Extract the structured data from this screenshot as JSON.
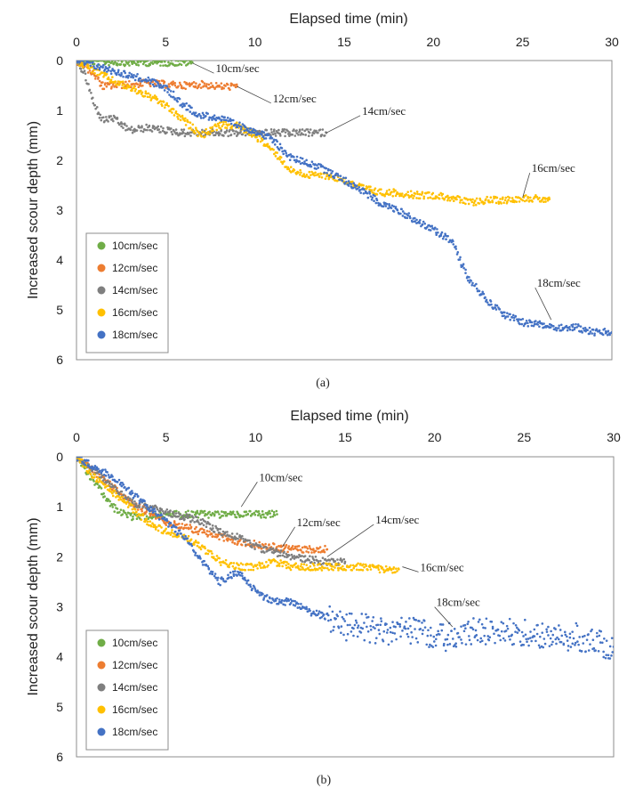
{
  "chart_data": [
    {
      "type": "scatter",
      "panel_label": "(a)",
      "xlabel": "Elapsed time (min)",
      "ylabel": "Increased scour depth (mm)",
      "xlim": [
        0,
        30
      ],
      "ylim": [
        0,
        6
      ],
      "y_inverted": true,
      "x_axis_position": "top",
      "xticks": [
        "0",
        "5",
        "10",
        "15",
        "20",
        "25",
        "30"
      ],
      "yticks": [
        "0",
        "1",
        "2",
        "3",
        "4",
        "5",
        "6"
      ],
      "legend": {
        "position": "bottom-left"
      },
      "series": [
        {
          "name": "10cm/sec",
          "color": "#70ad47",
          "annotation": "10cm/sec",
          "annot_point": [
            6.5,
            0.05
          ],
          "annot_text_at": [
            7.8,
            0.2
          ],
          "x": [
            0,
            1,
            2,
            3,
            4,
            5,
            6,
            6.5
          ],
          "y": [
            0.0,
            0.02,
            0.03,
            0.04,
            0.04,
            0.04,
            0.04,
            0.04
          ]
        },
        {
          "name": "12cm/sec",
          "color": "#ed7d31",
          "annotation": "12cm/sec",
          "annot_point": [
            9.0,
            0.52
          ],
          "annot_text_at": [
            11.0,
            0.8
          ],
          "x": [
            0,
            0.5,
            1,
            1.5,
            2,
            3,
            4,
            5,
            6,
            7,
            8,
            9
          ],
          "y": [
            0.0,
            0.1,
            0.3,
            0.52,
            0.5,
            0.48,
            0.45,
            0.48,
            0.5,
            0.48,
            0.52,
            0.52
          ]
        },
        {
          "name": "14cm/sec",
          "color": "#7f7f7f",
          "annotation": "14cm/sec",
          "annot_point": [
            14.0,
            1.45
          ],
          "annot_text_at": [
            16.0,
            1.05
          ],
          "x": [
            0,
            0.5,
            1,
            1.5,
            2,
            3,
            4,
            5,
            6,
            7,
            8,
            9,
            10,
            11,
            12,
            13,
            14
          ],
          "y": [
            0.0,
            0.3,
            0.9,
            1.2,
            1.15,
            1.4,
            1.35,
            1.4,
            1.45,
            1.45,
            1.45,
            1.45,
            1.45,
            1.45,
            1.45,
            1.45,
            1.45
          ]
        },
        {
          "name": "16cm/sec",
          "color": "#ffc000",
          "annotation": "16cm/sec",
          "annot_point": [
            25.0,
            2.75
          ],
          "annot_text_at": [
            25.5,
            2.2
          ],
          "x": [
            0,
            1,
            2,
            3,
            4,
            5,
            6,
            7,
            8,
            9,
            10,
            11,
            12,
            13,
            14,
            15,
            16,
            17,
            18,
            19,
            20,
            21,
            22,
            23,
            24,
            25,
            26,
            26.5
          ],
          "y": [
            0.0,
            0.2,
            0.4,
            0.55,
            0.7,
            0.9,
            1.2,
            1.5,
            1.3,
            1.3,
            1.5,
            1.8,
            2.2,
            2.3,
            2.3,
            2.4,
            2.55,
            2.65,
            2.65,
            2.7,
            2.7,
            2.75,
            2.85,
            2.8,
            2.8,
            2.75,
            2.78,
            2.78
          ]
        },
        {
          "name": "18cm/sec",
          "color": "#4472c4",
          "annotation": "18cm/sec",
          "annot_point": [
            26.6,
            5.2
          ],
          "annot_text_at": [
            25.8,
            4.5
          ],
          "x": [
            0,
            1,
            2,
            3,
            4,
            5,
            6,
            7,
            8,
            9,
            10,
            11,
            12,
            13,
            14,
            15,
            16,
            17,
            18,
            19,
            20,
            21,
            22,
            23,
            24,
            25,
            26,
            27,
            28,
            29,
            30
          ],
          "y": [
            0.0,
            0.1,
            0.2,
            0.3,
            0.4,
            0.55,
            0.9,
            1.1,
            1.15,
            1.3,
            1.4,
            1.6,
            1.95,
            2.05,
            2.2,
            2.4,
            2.6,
            2.85,
            3.0,
            3.2,
            3.4,
            3.6,
            4.4,
            4.8,
            5.1,
            5.25,
            5.3,
            5.35,
            5.35,
            5.45,
            5.45
          ]
        }
      ]
    },
    {
      "type": "scatter",
      "panel_label": "(b)",
      "xlabel": "Elapsed time (min)",
      "ylabel": "Increased scour depth (mm)",
      "xlim": [
        0,
        30
      ],
      "ylim": [
        0,
        6
      ],
      "y_inverted": true,
      "x_axis_position": "top",
      "xticks": [
        "0",
        "5",
        "10",
        "15",
        "20",
        "25",
        "30"
      ],
      "yticks": [
        "0",
        "1",
        "2",
        "3",
        "4",
        "5",
        "6"
      ],
      "legend": {
        "position": "bottom-left"
      },
      "series": [
        {
          "name": "10cm/sec",
          "color": "#70ad47",
          "annotation": "10cm/sec",
          "annot_point": [
            9.2,
            1.0
          ],
          "annot_text_at": [
            10.2,
            0.45
          ],
          "x": [
            0,
            1,
            2,
            3,
            4,
            5,
            6,
            7,
            8,
            9,
            10,
            11,
            11.2
          ],
          "y": [
            0.0,
            0.5,
            1.0,
            1.2,
            1.2,
            1.15,
            1.15,
            1.15,
            1.15,
            1.15,
            1.15,
            1.15,
            1.15
          ]
        },
        {
          "name": "12cm/sec",
          "color": "#ed7d31",
          "annotation": "12cm/sec",
          "annot_point": [
            11.5,
            1.8
          ],
          "annot_text_at": [
            12.3,
            1.35
          ],
          "x": [
            0,
            1,
            2,
            3,
            4,
            5,
            6,
            7,
            8,
            9,
            10,
            11,
            12,
            13,
            14
          ],
          "y": [
            0.0,
            0.3,
            0.6,
            0.9,
            1.1,
            1.3,
            1.4,
            1.5,
            1.6,
            1.7,
            1.75,
            1.8,
            1.85,
            1.85,
            1.85
          ]
        },
        {
          "name": "14cm/sec",
          "color": "#7f7f7f",
          "annotation": "14cm/sec",
          "annot_point": [
            14.0,
            2.0
          ],
          "annot_text_at": [
            16.7,
            1.3
          ],
          "x": [
            0,
            1,
            2,
            3,
            4,
            5,
            6,
            7,
            8,
            9,
            10,
            11,
            12,
            13,
            14,
            15
          ],
          "y": [
            0.0,
            0.3,
            0.6,
            0.9,
            1.0,
            1.1,
            1.2,
            1.3,
            1.5,
            1.6,
            1.8,
            1.9,
            2.0,
            2.05,
            2.1,
            2.1
          ]
        },
        {
          "name": "16cm/sec",
          "color": "#ffc000",
          "annotation": "16cm/sec",
          "annot_point": [
            18.2,
            2.2
          ],
          "annot_text_at": [
            19.2,
            2.25
          ],
          "x": [
            0,
            1,
            2,
            3,
            4,
            5,
            6,
            7,
            8,
            9,
            10,
            11,
            12,
            13,
            14,
            15,
            16,
            17,
            18
          ],
          "y": [
            0.0,
            0.4,
            0.7,
            1.0,
            1.3,
            1.5,
            1.6,
            1.8,
            2.1,
            2.2,
            2.2,
            2.1,
            2.2,
            2.2,
            2.2,
            2.2,
            2.2,
            2.25,
            2.25
          ]
        },
        {
          "name": "18cm/sec",
          "color": "#4472c4",
          "annotation": "18cm/sec",
          "annot_point": [
            21.0,
            3.4
          ],
          "annot_text_at": [
            20.1,
            2.95
          ],
          "x": [
            0,
            1,
            2,
            3,
            4,
            5,
            6,
            7,
            8,
            9,
            10,
            11,
            12,
            13,
            14,
            15,
            16,
            17,
            18,
            19,
            20,
            21,
            22,
            23,
            24,
            25,
            26,
            27,
            28,
            29,
            30
          ],
          "y": [
            0.0,
            0.2,
            0.4,
            0.7,
            1.0,
            1.3,
            1.6,
            2.1,
            2.5,
            2.3,
            2.7,
            2.9,
            2.9,
            3.1,
            3.2,
            3.4,
            3.4,
            3.5,
            3.5,
            3.45,
            3.6,
            3.6,
            3.5,
            3.5,
            3.5,
            3.5,
            3.6,
            3.6,
            3.6,
            3.7,
            3.8
          ]
        }
      ]
    }
  ]
}
